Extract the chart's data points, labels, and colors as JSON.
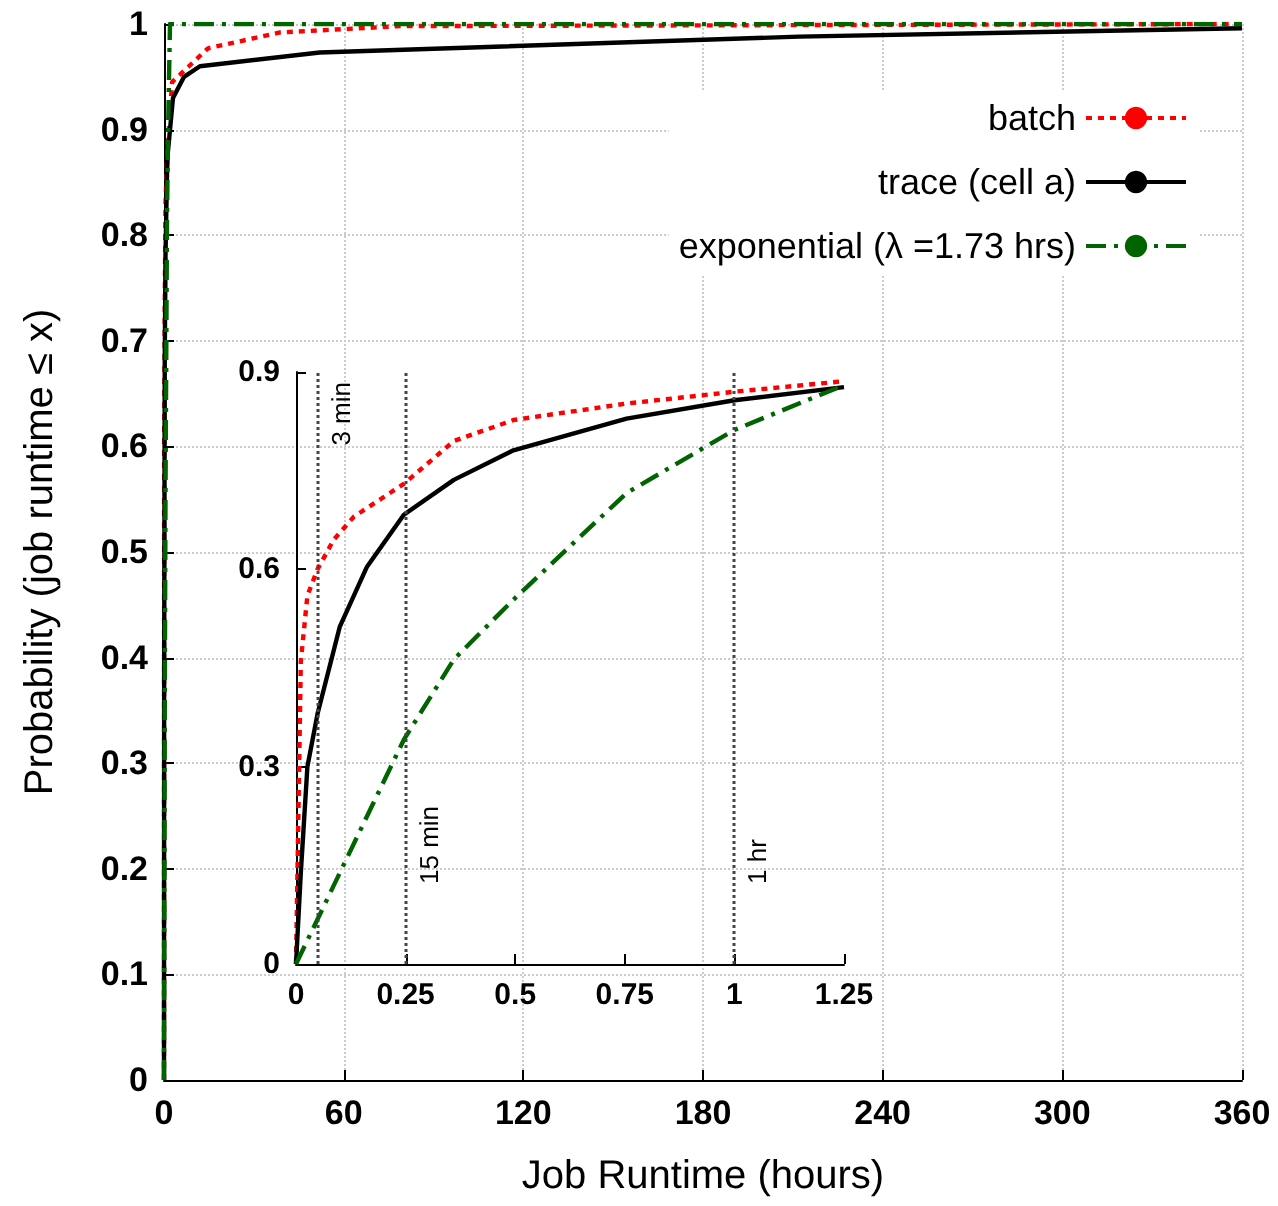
{
  "chart_data": [
    {
      "type": "line",
      "xlabel": "Job Runtime (hours)",
      "ylabel": "Probability (job runtime ≤ x)",
      "xlim": [
        0,
        360
      ],
      "xticks": [
        0,
        60,
        120,
        180,
        240,
        300,
        360
      ],
      "ylim": [
        0,
        1
      ],
      "yticks": [
        0,
        0.1,
        0.2,
        0.3,
        0.4,
        0.5,
        0.6,
        0.7,
        0.8,
        0.9,
        1
      ],
      "grid": true,
      "legend": "top right",
      "marker": "none",
      "series": [
        {
          "name": "batch",
          "color": "#ff0000",
          "line_style": "dotted",
          "x": [
            0,
            0.05,
            0.25,
            0.5,
            1,
            1.25,
            2.7,
            14.7,
            38.7,
            79,
            360
          ],
          "values": [
            0,
            0.6,
            0.73,
            0.83,
            0.87,
            0.886,
            0.945,
            0.977,
            0.992,
            0.998,
            1
          ]
        },
        {
          "name": "trace (cell a)",
          "color": "#000000",
          "line_style": "solid",
          "x": [
            0,
            0.05,
            0.25,
            0.5,
            1,
            1.25,
            3,
            6.7,
            12,
            52,
            212,
            360
          ],
          "values": [
            0,
            0.38,
            0.683,
            0.781,
            0.857,
            0.877,
            0.93,
            0.95,
            0.96,
            0.973,
            0.988,
            0.996
          ]
        },
        {
          "name": "exponential (λ =1.73 hrs)",
          "color": "#006400",
          "line_style": "dashed",
          "x": [
            0,
            0.25,
            0.5,
            1,
            1.25,
            2,
            360
          ],
          "values": [
            0,
            0.341,
            0.554,
            0.812,
            0.88,
            1,
            1
          ]
        }
      ]
    },
    {
      "type": "line",
      "xlim": [
        0,
        1.25
      ],
      "xticks": [
        0,
        0.25,
        0.5,
        0.75,
        1,
        1.25
      ],
      "ylim": [
        0,
        0.9
      ],
      "yticks": [
        0,
        0.3,
        0.6,
        0.9
      ],
      "marker": "none",
      "ref_lines": [
        {
          "axis": "x",
          "value": 0.05,
          "label": "3 min"
        },
        {
          "axis": "x",
          "value": 0.25,
          "label": "15 min"
        },
        {
          "axis": "x",
          "value": 1,
          "label": "1 hr"
        }
      ],
      "series": [
        {
          "color": "#ff0000",
          "line_style": "dotted",
          "x": [
            0,
            0.011,
            0.026,
            0.049,
            0.086,
            0.132,
            0.246,
            0.36,
            0.496,
            0.754,
            1,
            1.25
          ],
          "values": [
            0,
            0.46,
            0.56,
            0.6,
            0.645,
            0.68,
            0.73,
            0.795,
            0.827,
            0.852,
            0.87,
            0.886
          ]
        },
        {
          "color": "#000000",
          "line_style": "solid",
          "x": [
            0,
            0.011,
            0.026,
            0.049,
            0.1,
            0.162,
            0.246,
            0.36,
            0.496,
            0.754,
            1,
            1.25
          ],
          "values": [
            0,
            0.139,
            0.3,
            0.38,
            0.513,
            0.604,
            0.683,
            0.736,
            0.781,
            0.829,
            0.857,
            0.877
          ]
        },
        {
          "color": "#006400",
          "line_style": "dashed",
          "x": [
            0,
            0.246,
            0.36,
            0.496,
            0.754,
            1,
            1.25
          ],
          "values": [
            0,
            0.341,
            0.463,
            0.554,
            0.716,
            0.812,
            0.88
          ]
        }
      ]
    }
  ]
}
